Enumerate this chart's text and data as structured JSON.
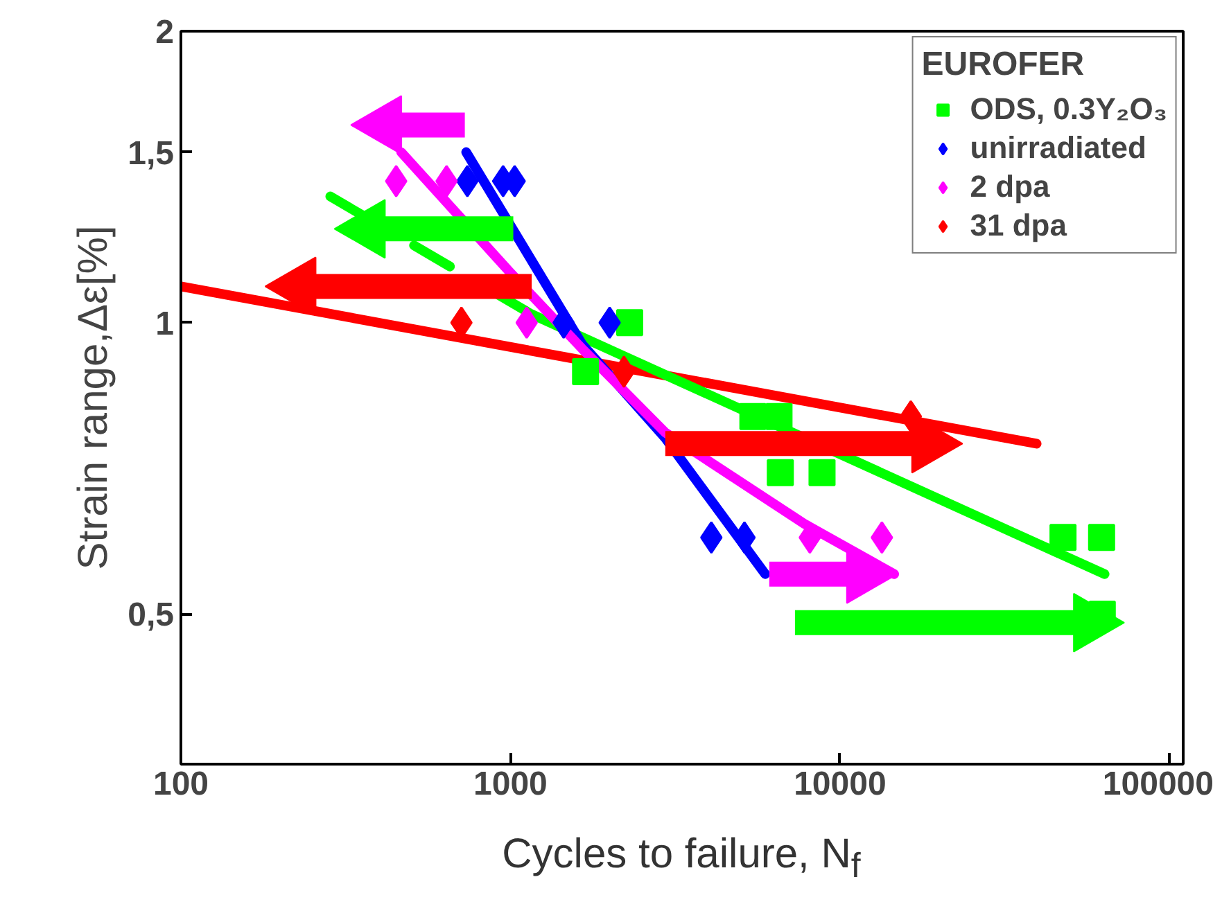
{
  "chart_data": {
    "type": "scatter",
    "xlabel": "Cycles to failure, N$_{f}$",
    "ylabel": "Strain range,Δε[%]",
    "legend_title": "EUROFER",
    "log": "xy",
    "xlim": [
      100,
      110000
    ],
    "ylim": [
      0.35,
      2
    ],
    "xticks": [
      100,
      1000,
      10000,
      100000
    ],
    "yticks": [
      {
        "value": 0.5,
        "label": "0,5"
      },
      1,
      {
        "value": 1.5,
        "label": "1,5"
      },
      2
    ],
    "grid": false,
    "legend": "top right",
    "series": [
      {
        "name": "ODS, 0.3Y₂O₃",
        "color": "#00ff00",
        "marker": "square",
        "x": [
          1690,
          2300,
          5440,
          6530,
          6590,
          8820,
          47500,
          62200,
          62500
        ],
        "values": [
          0.89,
          1.0,
          0.8,
          0.8,
          0.7,
          0.7,
          0.6,
          0.6,
          0.5
        ]
      },
      {
        "name": "unirradiated",
        "color": "#0000ff",
        "marker": "diamond",
        "x": [
          740,
          950,
          1030,
          1450,
          2000,
          4070,
          5130
        ],
        "values": [
          1.4,
          1.4,
          1.4,
          1.0,
          1.0,
          0.6,
          0.6
        ]
      },
      {
        "name": "2 dpa",
        "color": "#ff00ff",
        "marker": "diamond",
        "x": [
          450,
          640,
          1120,
          8100,
          13400
        ],
        "values": [
          1.4,
          1.4,
          1.0,
          0.6,
          0.6
        ]
      },
      {
        "name": "31 dpa",
        "color": "#ff0000",
        "marker": "diamond",
        "x": [
          710,
          2210,
          16400
        ],
        "values": [
          1.0,
          0.89,
          0.8
        ]
      },
      {
        "type": "line",
        "color": "#ff0000",
        "x": [
          100,
          39500
        ],
        "values": [
          1.09,
          0.75
        ]
      },
      {
        "type": "line",
        "color": "#00ff00",
        "x": [
          1160,
          63500
        ],
        "values": [
          1.02,
          0.55
        ]
      },
      {
        "type": "line",
        "color": "#00ff00",
        "line_style": "dashed",
        "x": [
          284,
          1160
        ],
        "values": [
          1.35,
          1.02
        ]
      },
      {
        "type": "line",
        "color": "#0000ff",
        "x": [
          734,
          1650,
          2950,
          5930
        ],
        "values": [
          1.5,
          0.95,
          0.76,
          0.55
        ]
      },
      {
        "type": "line",
        "color": "#ff00ff",
        "x": [
          466,
          990,
          1650,
          2950,
          7780,
          14600
        ],
        "values": [
          1.5,
          1.13,
          0.94,
          0.77,
          0.62,
          0.55
        ]
      },
      {
        "type": "line",
        "color": "#ff00ff",
        "x": [
          727,
          415
        ],
        "values": [
          1.6,
          1.6
        ]
      },
      {
        "type": "line",
        "color": "#00ff00",
        "x": [
          1020,
          370
        ],
        "values": [
          1.25,
          1.25
        ]
      },
      {
        "type": "line",
        "color": "#ff0000",
        "x": [
          1160,
          228
        ],
        "values": [
          1.09,
          1.09
        ]
      },
      {
        "type": "line",
        "color": "#ff0000",
        "x": [
          2950,
          18600
        ],
        "values": [
          0.75,
          0.75
        ]
      },
      {
        "type": "line",
        "color": "#ff00ff",
        "x": [
          6100,
          11800
        ],
        "values": [
          0.55,
          0.55
        ]
      },
      {
        "type": "line",
        "color": "#00ff00",
        "x": [
          7300,
          57600
        ],
        "values": [
          0.49,
          0.49
        ]
      }
    ]
  }
}
